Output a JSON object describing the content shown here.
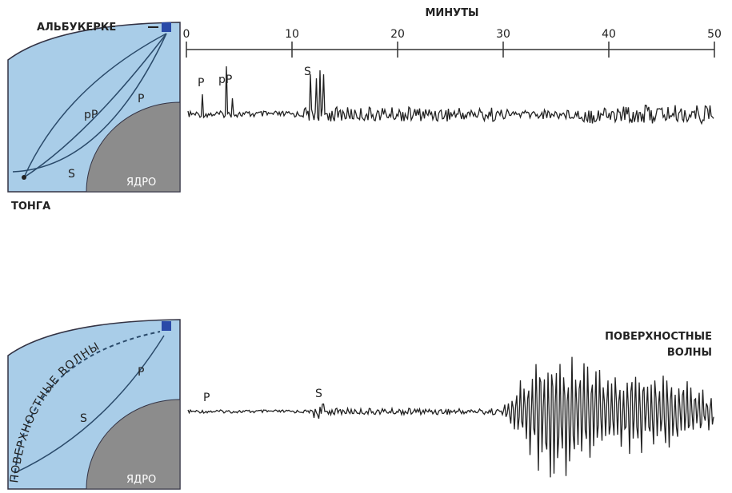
{
  "axis": {
    "title": "МИНУТЫ",
    "ticks": [
      0,
      10,
      20,
      30,
      40,
      50
    ]
  },
  "top_panel": {
    "station": "АЛЬБУКЕРКЕ",
    "source": "ТОНГА",
    "core": "ЯДРО",
    "paths": [
      "pP",
      "P",
      "S"
    ],
    "trace_labels": [
      "P",
      "pP",
      "S"
    ]
  },
  "bottom_panel": {
    "surface_path": "ПОВЕРХНОСТНЫЕ ВОЛНЫ",
    "core": "ЯДРО",
    "paths": [
      "P",
      "S"
    ],
    "trace_labels": [
      "P",
      "S"
    ],
    "surface_label": [
      "ПОВЕРХНОСТНЫЕ",
      "ВОЛНЫ"
    ]
  }
}
